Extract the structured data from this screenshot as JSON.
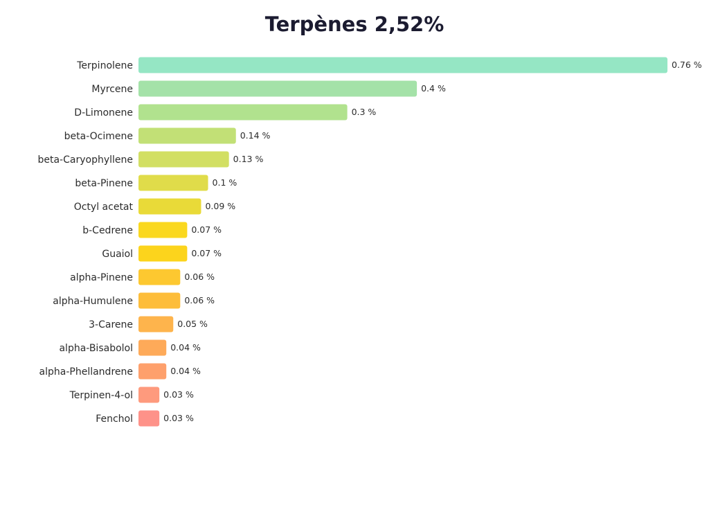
{
  "chart_data": {
    "type": "bar",
    "orientation": "horizontal",
    "title": "Terpènes 2,52%",
    "unit": "%",
    "grid": false,
    "legend": "none",
    "xlim": [
      0,
      0.76
    ],
    "categories": [
      "Terpinolene",
      "Myrcene",
      "D-Limonene",
      "beta-Ocimene",
      "beta-Caryophyllene",
      "beta-Pinene",
      "Octyl acetat",
      "b-Cedrene",
      "Guaiol",
      "alpha-Pinene",
      "alpha-Humulene",
      "3-Carene",
      "alpha-Bisabolol",
      "alpha-Phellandrene",
      "Terpinen-4-ol",
      "Fenchol"
    ],
    "values": [
      0.76,
      0.4,
      0.3,
      0.14,
      0.13,
      0.1,
      0.09,
      0.07,
      0.07,
      0.06,
      0.06,
      0.05,
      0.04,
      0.04,
      0.03,
      0.03
    ],
    "value_labels": [
      "0.76 %",
      "0.4 %",
      "0.3 %",
      "0.14 %",
      "0.13 %",
      "0.1 %",
      "0.09 %",
      "0.07 %",
      "0.07 %",
      "0.06 %",
      "0.06 %",
      "0.05 %",
      "0.04 %",
      "0.04 %",
      "0.03 %",
      "0.03 %"
    ],
    "colors": [
      "#95e6c4",
      "#a4e2a8",
      "#b1e28e",
      "#c2e076",
      "#d2df63",
      "#e0dc4a",
      "#e9da38",
      "#fad81f",
      "#fcd41c",
      "#fdc830",
      "#fdbd3a",
      "#feb44c",
      "#feaa59",
      "#fea06c",
      "#fe9a7d",
      "#fe9289"
    ]
  }
}
